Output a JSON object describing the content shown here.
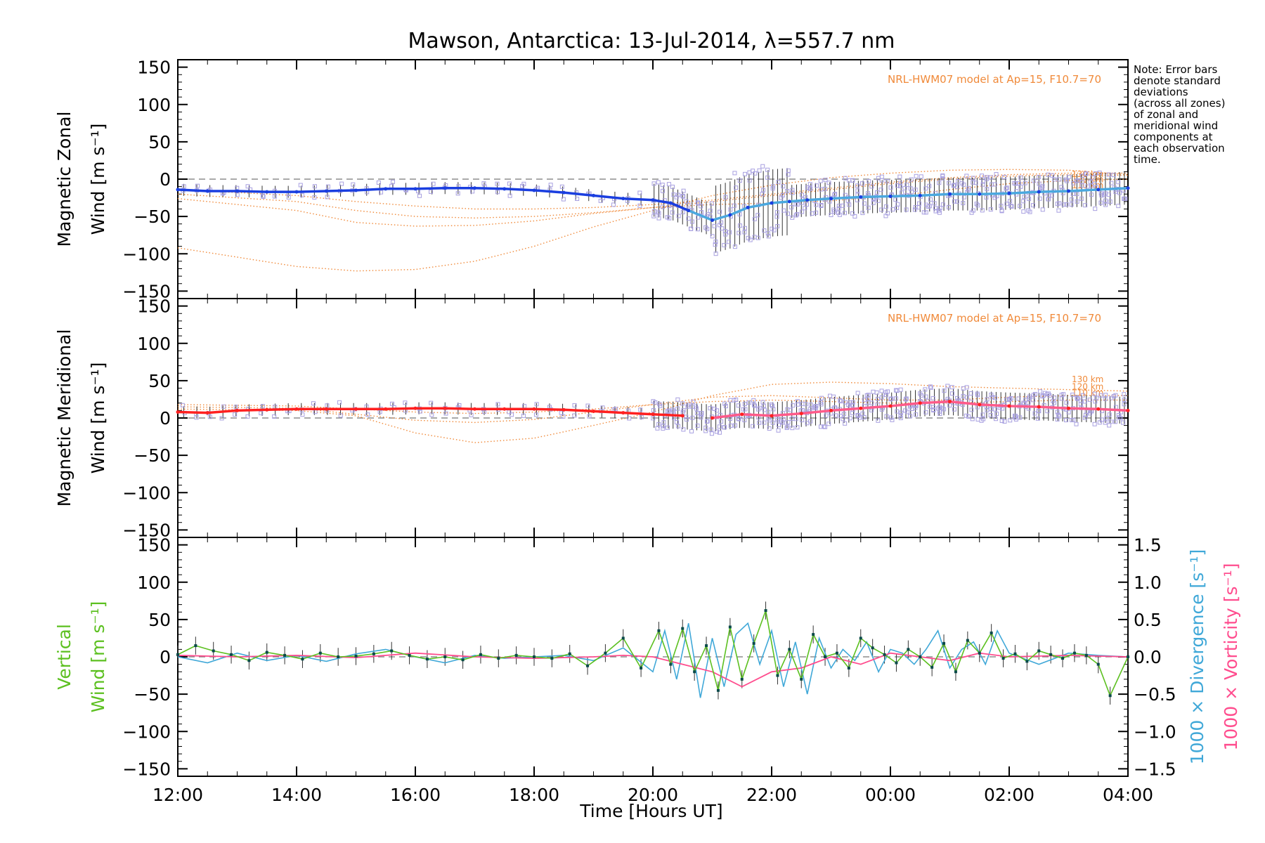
{
  "title": "Mawson, Antarctica: 13-Jul-2014, λ=557.7 nm",
  "note_lines": [
    "Note: Error bars",
    "denote standard",
    "deviations",
    "(across all zones)",
    "of zonal and",
    "meridional wind",
    "components at",
    "each observation",
    "time."
  ],
  "model_label": "NRL-HWM07 model at Ap=15, F10.7=70",
  "altitude_labels": [
    "130 km",
    "120 km",
    "110 km"
  ],
  "x_axis": {
    "label": "Time [Hours UT]",
    "unit": "hours since 12:00 UT, 13-Jul-2014",
    "range": [
      0,
      16
    ],
    "ticks": [
      0,
      2,
      4,
      6,
      8,
      10,
      12,
      14,
      16
    ],
    "tick_labels": [
      "12:00",
      "14:00",
      "16:00",
      "18:00",
      "20:00",
      "22:00",
      "00:00",
      "02:00",
      "04:00"
    ]
  },
  "y_ticks": [
    150,
    100,
    50,
    0,
    -50,
    -100,
    -150
  ],
  "y_tick_labels": [
    "150",
    "100",
    "50",
    "0",
    "−50",
    "−100",
    "−150"
  ],
  "right_ticks": [
    1.5,
    1.0,
    0.5,
    0.0,
    -0.5,
    -1.0,
    -1.5
  ],
  "right_tick_labels": [
    "1.5",
    "1.0",
    "0.5",
    "0.0",
    "−0.5",
    "−1.0",
    "−1.5"
  ],
  "panels": [
    {
      "ylabel_line1": "Magnetic Zonal",
      "ylabel_line2": "Wind [m s⁻¹]"
    },
    {
      "ylabel_line1": "Magnetic Meridional",
      "ylabel_line2": "Wind [m s⁻¹]"
    },
    {
      "ylabel_line1": "Vertical",
      "ylabel_line2": "Wind [m s⁻¹]",
      "right_label_1": "1000 × Divergence [s⁻¹]",
      "right_label_2": "1000 × Vorticity [s⁻¹]"
    }
  ],
  "colors": {
    "zonal": "#1a3ee0",
    "zonal_late": "#4aa8df",
    "meridional": "#ff2020",
    "meridional_late": "#ff5a8a",
    "vertical": "#5cc020",
    "divergence": "#40a8d8",
    "vorticity": "#ff4d8e",
    "model": "#f08a3a",
    "scatter": "#a8a0e0"
  },
  "chart_data": [
    {
      "type": "line",
      "title": "Mawson, Antarctica: 13-Jul-2014, λ=557.7 nm",
      "ylabel": "Magnetic Zonal Wind [m s⁻¹]",
      "xlabel": "",
      "ylim": [
        -160,
        160
      ],
      "series": [
        {
          "x": [
            0,
            0.5,
            1,
            1.5,
            2,
            2.5,
            3,
            3.5,
            4,
            4.5,
            5,
            5.5,
            6,
            6.5,
            7,
            7.5,
            8,
            8.3,
            8.6,
            9,
            9.3,
            9.6,
            10,
            10.3,
            10.6,
            11,
            11.5,
            12,
            12.5,
            13,
            13.5,
            14,
            14.5,
            15,
            15.5,
            16
          ],
          "y": [
            -14,
            -16,
            -16,
            -17,
            -17,
            -16,
            -15,
            -13,
            -13,
            -12,
            -12,
            -13,
            -15,
            -18,
            -22,
            -26,
            -28,
            -32,
            -42,
            -55,
            -48,
            -38,
            -32,
            -30,
            -28,
            -26,
            -24,
            -23,
            -22,
            -20,
            -20,
            -19,
            -17,
            -16,
            -14,
            -12
          ]
        }
      ],
      "model_curves": [
        {
          "x": [
            0,
            2,
            3,
            4,
            5,
            6,
            7,
            8,
            9,
            10,
            11,
            12,
            13,
            14,
            15,
            16
          ],
          "y": [
            -92,
            -117,
            -123,
            -121,
            -110,
            -90,
            -64,
            -42,
            -22,
            -8,
            2,
            8,
            12,
            13,
            12,
            6
          ]
        },
        {
          "x": [
            0,
            2,
            3,
            4,
            5,
            6,
            7,
            8,
            9,
            10,
            11,
            12,
            13,
            14,
            15,
            16
          ],
          "y": [
            -26,
            -42,
            -58,
            -63,
            -62,
            -56,
            -46,
            -38,
            -34,
            -32,
            -29,
            -23,
            -14,
            -6,
            -2,
            0
          ]
        },
        {
          "x": [
            0,
            2,
            3,
            4,
            5,
            6,
            7,
            8,
            9,
            10,
            11,
            12,
            13,
            14,
            15,
            16
          ],
          "y": [
            -20,
            -30,
            -42,
            -50,
            -52,
            -50,
            -45,
            -38,
            -30,
            -22,
            -14,
            -6,
            0,
            4,
            6,
            5
          ]
        },
        {
          "x": [
            0,
            2,
            3,
            4,
            5,
            6,
            7,
            8,
            9,
            10,
            11,
            12,
            13,
            14,
            15,
            16
          ],
          "y": [
            -14,
            -22,
            -30,
            -36,
            -40,
            -40,
            -38,
            -34,
            -28,
            -20,
            -12,
            -4,
            2,
            6,
            8,
            8
          ]
        }
      ]
    },
    {
      "type": "line",
      "ylabel": "Magnetic Meridional Wind [m s⁻¹]",
      "xlabel": "",
      "ylim": [
        -160,
        160
      ],
      "series": [
        {
          "x": [
            0,
            0.5,
            1,
            1.5,
            2,
            2.5,
            3,
            3.5,
            4,
            4.5,
            5,
            5.5,
            6,
            6.5,
            7,
            7.5,
            8,
            8.5,
            9,
            9.5,
            10,
            10.5,
            11,
            11.5,
            12,
            12.5,
            13,
            13.5,
            14,
            14.5,
            15,
            15.5,
            16
          ],
          "y": [
            8,
            7,
            10,
            11,
            12,
            12,
            12,
            12,
            13,
            13,
            12,
            12,
            12,
            11,
            9,
            7,
            5,
            3,
            0,
            5,
            3,
            6,
            10,
            13,
            16,
            20,
            22,
            18,
            16,
            15,
            13,
            12,
            10
          ]
        }
      ],
      "model_curves": [
        {
          "x": [
            0,
            2,
            3,
            4,
            5,
            6,
            7,
            8,
            9,
            10,
            11,
            12,
            13,
            14,
            15,
            16
          ],
          "y": [
            12,
            10,
            3,
            -20,
            -33,
            -27,
            -10,
            8,
            30,
            45,
            48,
            46,
            42,
            40,
            38,
            36
          ]
        },
        {
          "x": [
            0,
            2,
            3,
            4,
            5,
            6,
            7,
            8,
            9,
            10,
            11,
            12,
            13,
            14,
            15,
            16
          ],
          "y": [
            15,
            13,
            5,
            -3,
            -6,
            -2,
            8,
            18,
            28,
            30,
            27,
            24,
            24,
            28,
            30,
            30
          ]
        },
        {
          "x": [
            0,
            2,
            3,
            4,
            5,
            6,
            7,
            8,
            9,
            10,
            11,
            12,
            13,
            14,
            15,
            16
          ],
          "y": [
            18,
            16,
            12,
            8,
            6,
            8,
            12,
            18,
            22,
            24,
            22,
            20,
            20,
            22,
            24,
            24
          ]
        }
      ]
    },
    {
      "type": "line",
      "ylabel": "Vertical Wind [m s⁻¹]",
      "xlabel": "Time [Hours UT]",
      "ylim": [
        -160,
        160
      ],
      "y2label": "1000 × Divergence [s⁻¹] / 1000 × Vorticity [s⁻¹]",
      "y2lim": [
        -1.6,
        1.6
      ],
      "series": [
        {
          "name": "",
          "x": [
            0,
            0.3,
            0.6,
            0.9,
            1.2,
            1.5,
            1.8,
            2.1,
            2.4,
            2.7,
            3.0,
            3.3,
            3.6,
            3.9,
            4.2,
            4.5,
            4.8,
            5.1,
            5.4,
            5.7,
            6.0,
            6.3,
            6.6,
            6.9,
            7.2,
            7.5,
            7.8,
            8.1,
            8.3,
            8.5,
            8.7,
            8.9,
            9.1,
            9.3,
            9.5,
            9.7,
            9.9,
            10.1,
            10.3,
            10.5,
            10.7,
            10.9,
            11.1,
            11.3,
            11.5,
            11.7,
            11.9,
            12.1,
            12.3,
            12.5,
            12.7,
            12.9,
            13.1,
            13.3,
            13.5,
            13.7,
            13.9,
            14.1,
            14.3,
            14.5,
            14.7,
            14.9,
            15.1,
            15.3,
            15.5,
            15.7,
            16.0
          ],
          "y": [
            3,
            15,
            8,
            3,
            -5,
            6,
            2,
            -3,
            5,
            0,
            1,
            4,
            8,
            2,
            -3,
            0,
            -4,
            3,
            -2,
            2,
            0,
            -2,
            4,
            -12,
            5,
            25,
            -15,
            35,
            -10,
            38,
            -20,
            15,
            -45,
            40,
            -30,
            18,
            62,
            -25,
            10,
            -30,
            30,
            0,
            5,
            -15,
            25,
            12,
            3,
            -8,
            10,
            0,
            -14,
            18,
            -20,
            22,
            5,
            32,
            -2,
            4,
            -6,
            8,
            3,
            -2,
            5,
            2,
            -10,
            -52,
            0
          ]
        },
        {
          "name": "",
          "x": [
            0,
            0.5,
            1,
            1.5,
            2,
            2.5,
            3,
            3.5,
            4,
            4.5,
            5,
            5.5,
            6,
            6.5,
            7,
            7.5,
            8,
            8.2,
            8.4,
            8.6,
            8.8,
            9.0,
            9.2,
            9.4,
            9.6,
            9.8,
            10.0,
            10.2,
            10.4,
            10.6,
            10.8,
            11.0,
            11.2,
            11.4,
            11.6,
            11.8,
            12.0,
            12.2,
            12.4,
            12.6,
            12.8,
            13.0,
            13.2,
            13.4,
            13.6,
            13.8,
            14.0,
            14.5,
            15.0,
            15.5,
            16.0
          ],
          "y": [
            0.0,
            -0.08,
            0.05,
            -0.05,
            0.02,
            -0.06,
            0.04,
            0.1,
            0.0,
            -0.08,
            0.02,
            -0.02,
            0.0,
            0.02,
            -0.05,
            0.12,
            -0.2,
            0.35,
            -0.3,
            0.45,
            -0.55,
            0.25,
            -0.4,
            0.3,
            0.45,
            -0.1,
            0.35,
            -0.4,
            0.2,
            -0.5,
            0.25,
            -0.15,
            0.1,
            -0.05,
            0.2,
            -0.2,
            0.1,
            0.05,
            -0.1,
            0.1,
            0.35,
            -0.15,
            0.1,
            0.2,
            -0.1,
            0.35,
            0.05,
            -0.1,
            0.05,
            0.02,
            0.0
          ]
        },
        {
          "name": "",
          "x": [
            0,
            1,
            2,
            3,
            4,
            5,
            6,
            7,
            7.5,
            8,
            8.5,
            9,
            9.5,
            10,
            10.5,
            11,
            11.5,
            12,
            12.5,
            13,
            13.5,
            14,
            15,
            16
          ],
          "y": [
            0.02,
            0.0,
            0.02,
            -0.01,
            0.05,
            0.0,
            -0.02,
            0.0,
            0.02,
            0.0,
            -0.1,
            -0.2,
            -0.4,
            -0.2,
            -0.15,
            0.0,
            -0.1,
            0.05,
            0.0,
            -0.05,
            0.05,
            0.0,
            0.02,
            0.0
          ]
        }
      ]
    }
  ]
}
